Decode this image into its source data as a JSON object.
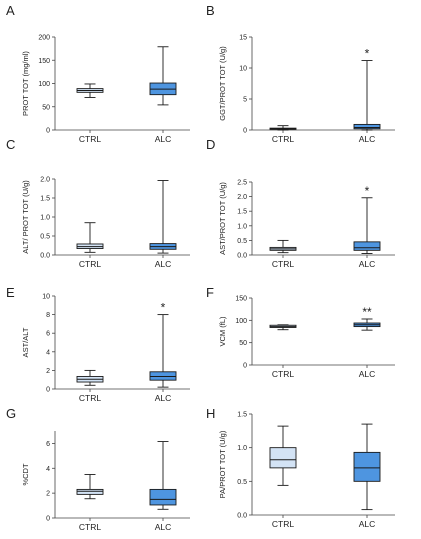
{
  "figure": {
    "colors": {
      "ctrl": "#d3e3f5",
      "alc": "#4e95e0",
      "axis": "#444444",
      "stroke": "#1a1a1a"
    }
  },
  "chart_data": [
    {
      "panel": "A",
      "type": "box",
      "ylabel": "PROT TOT (mg/ml)",
      "ylim": [
        0,
        200
      ],
      "yticks": [
        "0",
        "50",
        "100",
        "150",
        "200"
      ],
      "tick_values": [
        0,
        50,
        100,
        150,
        200
      ],
      "categories": [
        "CTRL",
        "ALC"
      ],
      "boxes": [
        {
          "min": 70,
          "q1": 81,
          "median": 85,
          "q3": 89,
          "max": 99
        },
        {
          "min": 54,
          "q1": 76,
          "median": 88,
          "q3": 101,
          "max": 179
        }
      ],
      "annotations": [
        "",
        ""
      ]
    },
    {
      "panel": "B",
      "type": "box",
      "ylabel": "GGT/PROT TOT (U/g)",
      "ylim": [
        0,
        15
      ],
      "yticks": [
        "0",
        "5",
        "10",
        "15"
      ],
      "tick_values": [
        0,
        5,
        10,
        15
      ],
      "categories": [
        "CTRL",
        "ALC"
      ],
      "boxes": [
        {
          "min": 0,
          "q1": 0.1,
          "median": 0.2,
          "q3": 0.3,
          "max": 0.7
        },
        {
          "min": 0,
          "q1": 0.2,
          "median": 0.4,
          "q3": 0.9,
          "max": 11.2
        }
      ],
      "annotations": [
        "",
        "*"
      ]
    },
    {
      "panel": "C",
      "type": "box",
      "ylabel": "ALT/ PROT TOT (U/g)",
      "ylim": [
        0,
        2.0
      ],
      "yticks": [
        "0.0",
        "0.5",
        "1.0",
        "1.5",
        "2.0"
      ],
      "tick_values": [
        0,
        0.5,
        1.0,
        1.5,
        2.0
      ],
      "categories": [
        "CTRL",
        "ALC"
      ],
      "boxes": [
        {
          "min": 0.07,
          "q1": 0.17,
          "median": 0.22,
          "q3": 0.29,
          "max": 0.85
        },
        {
          "min": 0.05,
          "q1": 0.15,
          "median": 0.22,
          "q3": 0.3,
          "max": 1.96
        }
      ],
      "annotations": [
        "",
        ""
      ]
    },
    {
      "panel": "D",
      "type": "box",
      "ylabel": "AST/PROT TOT (U/g)",
      "ylim": [
        0,
        2.5
      ],
      "yticks": [
        "0.0",
        "0.5",
        "1.0",
        "1.5",
        "2.0",
        "2.5"
      ],
      "tick_values": [
        0,
        0.5,
        1.0,
        1.5,
        2.0,
        2.5
      ],
      "categories": [
        "CTRL",
        "ALC"
      ],
      "boxes": [
        {
          "min": 0.08,
          "q1": 0.16,
          "median": 0.21,
          "q3": 0.26,
          "max": 0.5
        },
        {
          "min": 0.05,
          "q1": 0.16,
          "median": 0.25,
          "q3": 0.45,
          "max": 1.96
        }
      ],
      "annotations": [
        "",
        "*"
      ]
    },
    {
      "panel": "E",
      "type": "box",
      "ylabel": "AST/ALT",
      "ylim": [
        0,
        10
      ],
      "yticks": [
        "0",
        "2",
        "4",
        "6",
        "8",
        "10"
      ],
      "tick_values": [
        0,
        2,
        4,
        6,
        8,
        10
      ],
      "categories": [
        "CTRL",
        "ALC"
      ],
      "boxes": [
        {
          "min": 0.4,
          "q1": 0.75,
          "median": 1.05,
          "q3": 1.35,
          "max": 2.0
        },
        {
          "min": 0.2,
          "q1": 0.95,
          "median": 1.35,
          "q3": 1.85,
          "max": 8.0
        }
      ],
      "annotations": [
        "",
        "*"
      ]
    },
    {
      "panel": "F",
      "type": "box",
      "ylabel": "VCM (fL)",
      "ylim": [
        0,
        150
      ],
      "yticks": [
        "0",
        "50",
        "100",
        "150"
      ],
      "tick_values": [
        0,
        50,
        100,
        150
      ],
      "categories": [
        "CTRL",
        "ALC"
      ],
      "boxes": [
        {
          "min": 79,
          "q1": 84,
          "median": 86,
          "q3": 89,
          "max": 90
        },
        {
          "min": 78,
          "q1": 86,
          "median": 90,
          "q3": 94,
          "max": 103
        }
      ],
      "annotations": [
        "",
        "**"
      ]
    },
    {
      "panel": "G",
      "type": "box",
      "ylabel": "%CDT",
      "ylim": [
        0,
        7
      ],
      "yticks": [
        "0",
        "2",
        "4",
        "6"
      ],
      "tick_values": [
        0,
        2,
        4,
        6
      ],
      "categories": [
        "CTRL",
        "ALC"
      ],
      "boxes": [
        {
          "min": 1.55,
          "q1": 1.9,
          "median": 2.15,
          "q3": 2.3,
          "max": 3.5
        },
        {
          "min": 0.7,
          "q1": 1.05,
          "median": 1.5,
          "q3": 2.3,
          "max": 6.15
        }
      ],
      "annotations": [
        "",
        ""
      ]
    },
    {
      "panel": "H",
      "type": "box",
      "ylabel": "PA/PROT TOT (U/g)",
      "ylim": [
        0,
        1.5
      ],
      "yticks": [
        "0.0",
        "0.5",
        "1.0",
        "1.5"
      ],
      "tick_values": [
        0,
        0.5,
        1.0,
        1.5
      ],
      "categories": [
        "CTRL",
        "ALC"
      ],
      "boxes": [
        {
          "min": 0.44,
          "q1": 0.7,
          "median": 0.82,
          "q3": 1.0,
          "max": 1.32
        },
        {
          "min": 0.08,
          "q1": 0.5,
          "median": 0.7,
          "q3": 0.93,
          "max": 1.35
        }
      ],
      "annotations": [
        "",
        ""
      ]
    }
  ]
}
